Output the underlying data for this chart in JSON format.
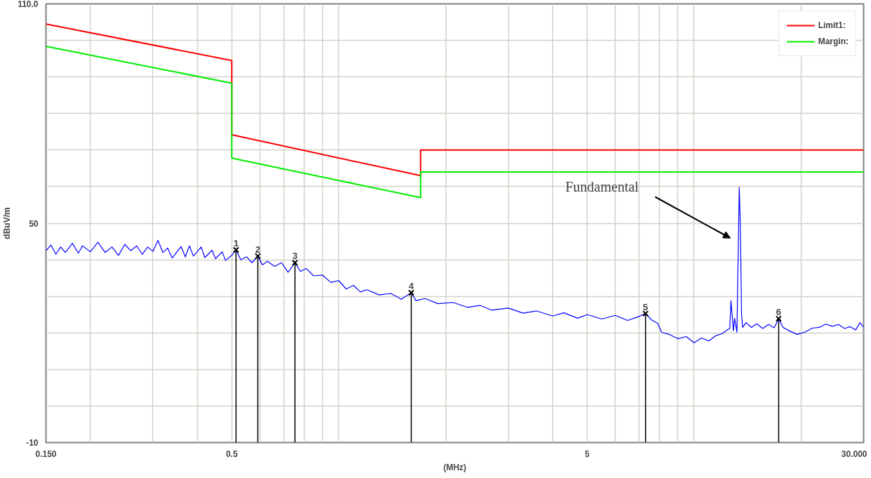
{
  "chart_data": {
    "type": "line",
    "xlabel": "(MHz)",
    "ylabel": "dBuV/m",
    "log": "x",
    "xlim": [
      0.15,
      30
    ],
    "ylim": [
      -10,
      110
    ],
    "xticks": [
      {
        "value": 0.15,
        "label": "0.150"
      },
      {
        "value": 0.2,
        "label": null
      },
      {
        "value": 0.3,
        "label": null
      },
      {
        "value": 0.4,
        "label": null
      },
      0.5,
      {
        "value": 0.6,
        "label": null
      },
      {
        "value": 0.7,
        "label": null
      },
      {
        "value": 0.8,
        "label": null
      },
      {
        "value": 0.9,
        "label": null
      },
      {
        "value": 1,
        "label": null
      },
      {
        "value": 2,
        "label": null
      },
      {
        "value": 3,
        "label": null
      },
      {
        "value": 4,
        "label": null
      },
      5,
      {
        "value": 6,
        "label": null
      },
      {
        "value": 7,
        "label": null
      },
      {
        "value": 8,
        "label": null
      },
      {
        "value": 9,
        "label": null
      },
      {
        "value": 10,
        "label": null
      },
      {
        "value": 20,
        "label": null
      },
      {
        "value": 30,
        "label": "30.000"
      }
    ],
    "yticks": [
      -10,
      {
        "value": 0,
        "label": null
      },
      {
        "value": 10,
        "label": null
      },
      {
        "value": 20,
        "label": null
      },
      {
        "value": 30,
        "label": null
      },
      {
        "value": 40,
        "label": null
      },
      50,
      {
        "value": 60,
        "label": null
      },
      {
        "value": 70,
        "label": null
      },
      {
        "value": 80,
        "label": null
      },
      {
        "value": 90,
        "label": null
      },
      {
        "value": 100,
        "label": null
      },
      {
        "value": 110,
        "label": "110.0"
      }
    ],
    "grid": true,
    "legend": "top right",
    "marker": "none",
    "line_style": "solid",
    "annotations": [
      "Fundamental",
      {
        "text": "1",
        "x": 0.514,
        "y": 42.7
      },
      {
        "text": "2",
        "x": 0.592,
        "y": 41.0
      },
      {
        "text": "3",
        "x": 0.753,
        "y": 39.2
      },
      {
        "text": "4",
        "x": 1.6,
        "y": 31.0
      },
      {
        "text": "5",
        "x": 7.3,
        "y": 25.3
      },
      {
        "text": "6",
        "x": 17.3,
        "y": 23.9
      }
    ],
    "series": [
      {
        "name": "Limit1:",
        "color": "#ff0000",
        "x": [
          0.15,
          0.5,
          0.5,
          1.7,
          1.7,
          30
        ],
        "values": [
          104.5,
          94.5,
          74.2,
          63,
          70,
          70
        ]
      },
      {
        "name": "Margin:",
        "color": "#00ee00",
        "x": [
          0.15,
          0.5,
          0.5,
          1.7,
          1.7,
          30
        ],
        "values": [
          98.4,
          88.3,
          67.8,
          57,
          64,
          64
        ]
      },
      {
        "color": "#0000ff",
        "x": [
          0.15,
          0.155,
          0.16,
          0.165,
          0.17,
          0.178,
          0.185,
          0.19,
          0.2,
          0.21,
          0.22,
          0.23,
          0.24,
          0.25,
          0.26,
          0.27,
          0.28,
          0.29,
          0.3,
          0.31,
          0.32,
          0.33,
          0.34,
          0.36,
          0.37,
          0.38,
          0.39,
          0.41,
          0.42,
          0.44,
          0.45,
          0.47,
          0.48,
          0.5,
          0.514,
          0.53,
          0.55,
          0.57,
          0.592,
          0.61,
          0.63,
          0.66,
          0.69,
          0.72,
          0.753,
          0.78,
          0.81,
          0.85,
          0.9,
          0.95,
          1.0,
          1.05,
          1.1,
          1.15,
          1.2,
          1.3,
          1.4,
          1.5,
          1.6,
          1.65,
          1.75,
          1.9,
          2.1,
          2.3,
          2.5,
          2.7,
          3.0,
          3.3,
          3.6,
          4.0,
          4.3,
          4.7,
          5.0,
          5.5,
          6.0,
          6.5,
          7.0,
          7.3,
          7.6,
          7.9,
          8.1,
          8.5,
          9.0,
          9.5,
          10.0,
          10.5,
          11.0,
          11.5,
          12.0,
          12.4,
          12.6,
          12.7,
          12.9,
          13.0,
          13.2,
          13.4,
          13.5,
          13.6,
          13.7,
          14.0,
          14.5,
          15.0,
          15.6,
          16.2,
          16.8,
          17.3,
          17.8,
          18.5,
          19.5,
          20.5,
          21.5,
          22.5,
          23.5,
          24.5,
          25.5,
          26.5,
          27.5,
          28.5,
          29.3,
          30
        ],
        "values": [
          42.5,
          44,
          41.5,
          43.5,
          42,
          44.5,
          41.8,
          43.8,
          42.2,
          44.8,
          42,
          43.5,
          41.2,
          44.2,
          42.5,
          43.8,
          41.5,
          43.5,
          42.3,
          45.3,
          42,
          43.2,
          40.5,
          43.6,
          40.8,
          43.8,
          41,
          43.5,
          40.6,
          42.6,
          40.3,
          42.2,
          39.8,
          41.2,
          42.7,
          40,
          40.8,
          39.2,
          41,
          38.6,
          39.6,
          38.2,
          39.2,
          36.6,
          39.2,
          36.8,
          37.6,
          35.6,
          35.8,
          33.8,
          34.3,
          32,
          33,
          31.2,
          31.8,
          30.4,
          30.8,
          29.2,
          31,
          28.8,
          29.4,
          28,
          28.3,
          27,
          27.5,
          26.2,
          26.8,
          25.4,
          26,
          24.6,
          25.5,
          24,
          25,
          23.8,
          24.8,
          23.4,
          24.5,
          25.3,
          23.5,
          22.6,
          20.2,
          19.6,
          18.4,
          19,
          17.3,
          18.6,
          17.8,
          19.2,
          19.8,
          20.8,
          21.2,
          28.8,
          20.6,
          24,
          20.2,
          59.8,
          48.6,
          25,
          21.5,
          22.8,
          21.5,
          22.5,
          21.2,
          22.3,
          21.4,
          23.9,
          21.5,
          20.6,
          19.6,
          20.2,
          21.3,
          21.5,
          22.4,
          21.8,
          22.3,
          21.2,
          21.7,
          20.8,
          22.8,
          21.6
        ]
      },
      {
        "type": "lollipop",
        "color": "#000000",
        "marker": "cross",
        "x": [
          0.514,
          0.592,
          0.753,
          1.6,
          7.3,
          17.3
        ],
        "values": [
          42.7,
          41.0,
          39.2,
          31.0,
          25.3,
          23.9
        ]
      }
    ]
  }
}
